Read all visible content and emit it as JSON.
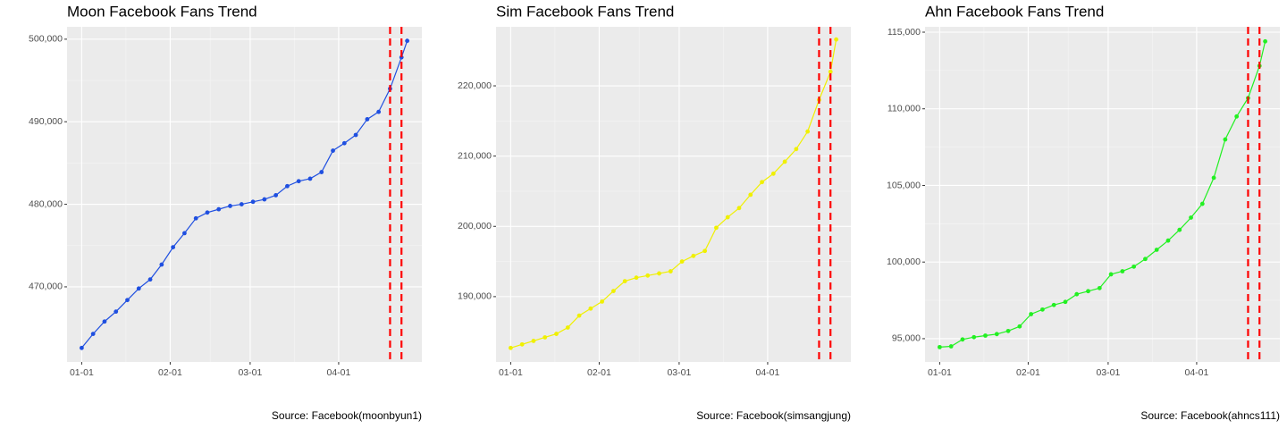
{
  "chart_data": [
    {
      "type": "line",
      "title": "Moon Facebook Fans Trend",
      "caption": "Source: Facebook(moonbyun1)",
      "x": [
        "01-01",
        "01-05",
        "01-09",
        "01-13",
        "01-17",
        "01-21",
        "01-25",
        "01-29",
        "02-02",
        "02-06",
        "02-10",
        "02-14",
        "02-18",
        "02-22",
        "02-26",
        "03-02",
        "03-06",
        "03-10",
        "03-14",
        "03-18",
        "03-22",
        "03-26",
        "03-30",
        "04-03",
        "04-07",
        "04-11",
        "04-15",
        "04-19",
        "04-23",
        "04-25"
      ],
      "series": [
        {
          "color": "#1f4fe0",
          "values": [
            462600,
            464300,
            465800,
            467000,
            468400,
            469800,
            470900,
            472700,
            474800,
            476500,
            478300,
            479000,
            479400,
            479800,
            480000,
            480300,
            480600,
            481100,
            482200,
            482800,
            483100,
            483900,
            486500,
            487400,
            488400,
            490300,
            491200,
            494000,
            497800,
            499800
          ]
        }
      ],
      "ylim": [
        460900,
        501500
      ],
      "yticks": [
        {
          "value": 470000,
          "label": "470,000"
        },
        {
          "value": 480000,
          "label": "480,000"
        },
        {
          "value": 490000,
          "label": "490,000"
        },
        {
          "value": 500000,
          "label": "500,000"
        }
      ],
      "xticks": [
        "01-01",
        "02-01",
        "03-01",
        "04-01"
      ],
      "vlines": [
        "04-19",
        "04-23"
      ],
      "vline_color": "#ff0000",
      "vline_style": "dashed",
      "grid": true
    },
    {
      "type": "line",
      "title": "Sim Facebook Fans Trend",
      "caption": "Source: Facebook(simsangjung)",
      "x": [
        "01-01",
        "01-05",
        "01-09",
        "01-13",
        "01-17",
        "01-21",
        "01-25",
        "01-29",
        "02-02",
        "02-06",
        "02-10",
        "02-14",
        "02-18",
        "02-22",
        "02-26",
        "03-02",
        "03-06",
        "03-10",
        "03-14",
        "03-18",
        "03-22",
        "03-26",
        "03-30",
        "04-03",
        "04-07",
        "04-11",
        "04-15",
        "04-19",
        "04-23",
        "04-25"
      ],
      "series": [
        {
          "color": "#f0f000",
          "values": [
            182700,
            183200,
            183700,
            184200,
            184700,
            185600,
            187300,
            188300,
            189300,
            190800,
            192200,
            192700,
            193000,
            193300,
            193600,
            195000,
            195800,
            196500,
            199800,
            201300,
            202600,
            204500,
            206300,
            207500,
            209200,
            211000,
            213500,
            218000,
            222000,
            226600
          ]
        }
      ],
      "ylim": [
        180700,
        228400
      ],
      "yticks": [
        {
          "value": 190000,
          "label": "190,000"
        },
        {
          "value": 200000,
          "label": "200,000"
        },
        {
          "value": 210000,
          "label": "210,000"
        },
        {
          "value": 220000,
          "label": "220,000"
        }
      ],
      "xticks": [
        "01-01",
        "02-01",
        "03-01",
        "04-01"
      ],
      "vlines": [
        "04-19",
        "04-23"
      ],
      "vline_color": "#ff0000",
      "vline_style": "dashed",
      "grid": true
    },
    {
      "type": "line",
      "title": "Ahn Facebook Fans Trend",
      "caption": "Source: Facebook(ahncs111)",
      "x": [
        "01-01",
        "01-05",
        "01-09",
        "01-13",
        "01-17",
        "01-21",
        "01-25",
        "01-29",
        "02-02",
        "02-06",
        "02-10",
        "02-14",
        "02-18",
        "02-22",
        "02-26",
        "03-02",
        "03-06",
        "03-10",
        "03-14",
        "03-18",
        "03-22",
        "03-26",
        "03-30",
        "04-03",
        "04-07",
        "04-11",
        "04-15",
        "04-19",
        "04-23",
        "04-25"
      ],
      "series": [
        {
          "color": "#22f022",
          "values": [
            94450,
            94500,
            94950,
            95100,
            95200,
            95300,
            95500,
            95800,
            96600,
            96900,
            97200,
            97400,
            97900,
            98100,
            98300,
            99200,
            99400,
            99700,
            100200,
            100800,
            101400,
            102100,
            102900,
            103800,
            105500,
            108000,
            109500,
            110700,
            112800,
            114400
          ]
        }
      ],
      "ylim": [
        93480,
        115350
      ],
      "yticks": [
        {
          "value": 95000,
          "label": "95,000"
        },
        {
          "value": 100000,
          "label": "100,000"
        },
        {
          "value": 105000,
          "label": "105,000"
        },
        {
          "value": 110000,
          "label": "110,000"
        },
        {
          "value": 115000,
          "label": "115,000"
        }
      ],
      "xticks": [
        "01-01",
        "02-01",
        "03-01",
        "04-01"
      ],
      "vlines": [
        "04-19",
        "04-23"
      ],
      "vline_color": "#ff0000",
      "vline_style": "dashed",
      "grid": true
    }
  ]
}
